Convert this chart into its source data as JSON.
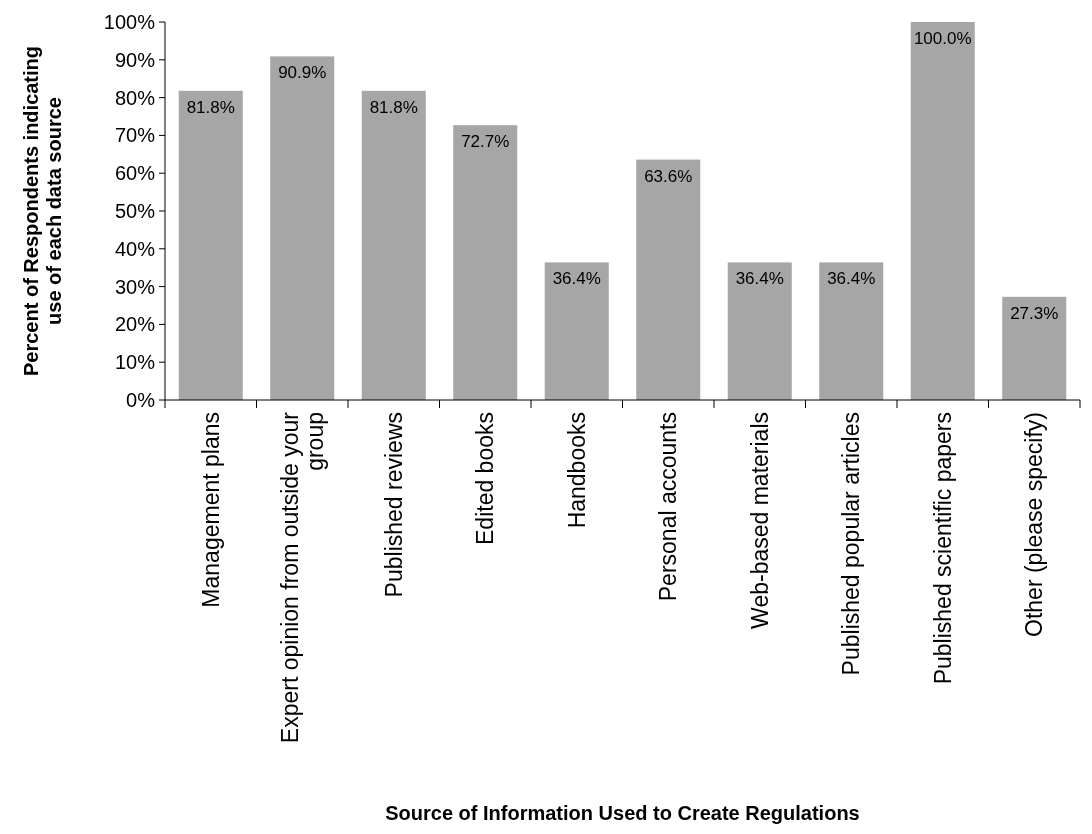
{
  "chart_data": {
    "type": "bar",
    "xlabel": "Source of Information Used to Create Regulations",
    "ylabel": "Percent of Respondents indicating use of each data source",
    "categories": [
      "Management plans",
      "Expert opinion from outside your group",
      "Published reviews",
      "Edited books",
      "Handbooks",
      "Personal accounts",
      "Web-based materials",
      "Published popular articles",
      "Published scientific papers",
      "Other (please specify)"
    ],
    "values": [
      81.8,
      90.9,
      81.8,
      72.7,
      36.4,
      63.6,
      36.4,
      36.4,
      100.0,
      27.3
    ],
    "value_labels": [
      "81.8%",
      "90.9%",
      "81.8%",
      "72.7%",
      "36.4%",
      "63.6%",
      "36.4%",
      "36.4%",
      "100.0%",
      "27.3%"
    ],
    "color": "#a6a6a6",
    "ylim": [
      0,
      100
    ],
    "yticks": [
      {
        "value": 0,
        "label": "0%"
      },
      {
        "value": 10,
        "label": "10%"
      },
      {
        "value": 20,
        "label": "20%"
      },
      {
        "value": 30,
        "label": "30%"
      },
      {
        "value": 40,
        "label": "40%"
      },
      {
        "value": 50,
        "label": "50%"
      },
      {
        "value": 60,
        "label": "60%"
      },
      {
        "value": 70,
        "label": "70%"
      },
      {
        "value": 80,
        "label": "80%"
      },
      {
        "value": 90,
        "label": "90%"
      },
      {
        "value": 100,
        "label": "100%"
      }
    ],
    "grid": false
  }
}
